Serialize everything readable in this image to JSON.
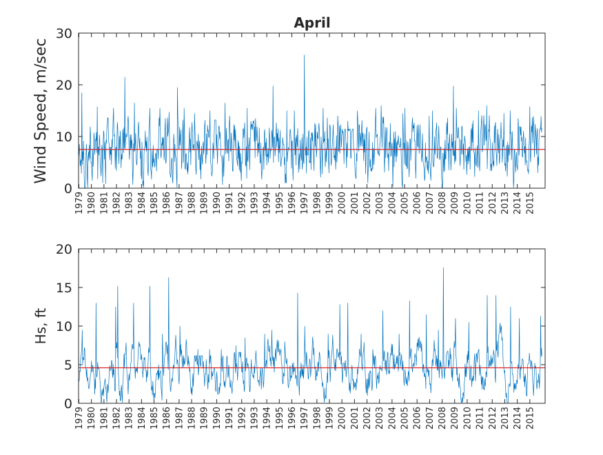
{
  "chart_data": [
    {
      "type": "line",
      "title": "April",
      "ylabel": "Wind Speed, m/sec",
      "xlabel": "",
      "ylim": [
        0,
        30
      ],
      "yticks": [
        "0",
        "10",
        "20",
        "30"
      ],
      "x_tick_labels": [
        "1979",
        "1980",
        "1981",
        "1982",
        "1983",
        "1984",
        "1985",
        "1986",
        "1987",
        "1988",
        "1989",
        "1990",
        "1991",
        "1992",
        "1993",
        "1994",
        "1995",
        "1996",
        "1997",
        "1998",
        "1999",
        "2000",
        "2001",
        "2002",
        "2003",
        "2004",
        "2005",
        "2006",
        "2007",
        "2008",
        "2009",
        "2010",
        "2011",
        "2012",
        "2013",
        "2014",
        "2015"
      ],
      "mean_line": 7.5,
      "series_color": "#0072bd",
      "mean_color": "#d62728",
      "annual_peaks": [
        18.5,
        15.8,
        15.5,
        21.5,
        16.5,
        15.5,
        15.5,
        19.5,
        15.5,
        14.5,
        15,
        16.5,
        14,
        15.5,
        13.5,
        19.8,
        15,
        15,
        25.8,
        15.5,
        14,
        13,
        15,
        15.5,
        16,
        14.5,
        15.5,
        14,
        15,
        19.8,
        15.5,
        15,
        16,
        14.5,
        15,
        13.5,
        15.8
      ]
    },
    {
      "type": "line",
      "title": "",
      "ylabel": "Hs, ft",
      "xlabel": "",
      "ylim": [
        0,
        20
      ],
      "yticks": [
        "0",
        "5",
        "10",
        "15",
        "20"
      ],
      "x_tick_labels": [
        "1979",
        "1980",
        "1981",
        "1982",
        "1983",
        "1984",
        "1985",
        "1986",
        "1987",
        "1988",
        "1989",
        "1990",
        "1991",
        "1992",
        "1993",
        "1994",
        "1995",
        "1996",
        "1997",
        "1998",
        "1999",
        "2000",
        "2001",
        "2002",
        "2003",
        "2004",
        "2005",
        "2006",
        "2007",
        "2008",
        "2009",
        "2010",
        "2011",
        "2012",
        "2013",
        "2014",
        "2015"
      ],
      "mean_line": 4.6,
      "series_color": "#0072bd",
      "mean_color": "#d62728",
      "annual_peaks": [
        9.5,
        13,
        12.5,
        15.2,
        13,
        15.2,
        9,
        16.3,
        10,
        7,
        7,
        7,
        7.5,
        8.5,
        9,
        9.5,
        8,
        14.3,
        10,
        9,
        12.8,
        13,
        9,
        7,
        12,
        9,
        13.3,
        11.5,
        9.5,
        17.6,
        11,
        10.5,
        14,
        14,
        12.5,
        11,
        11.3
      ]
    }
  ]
}
